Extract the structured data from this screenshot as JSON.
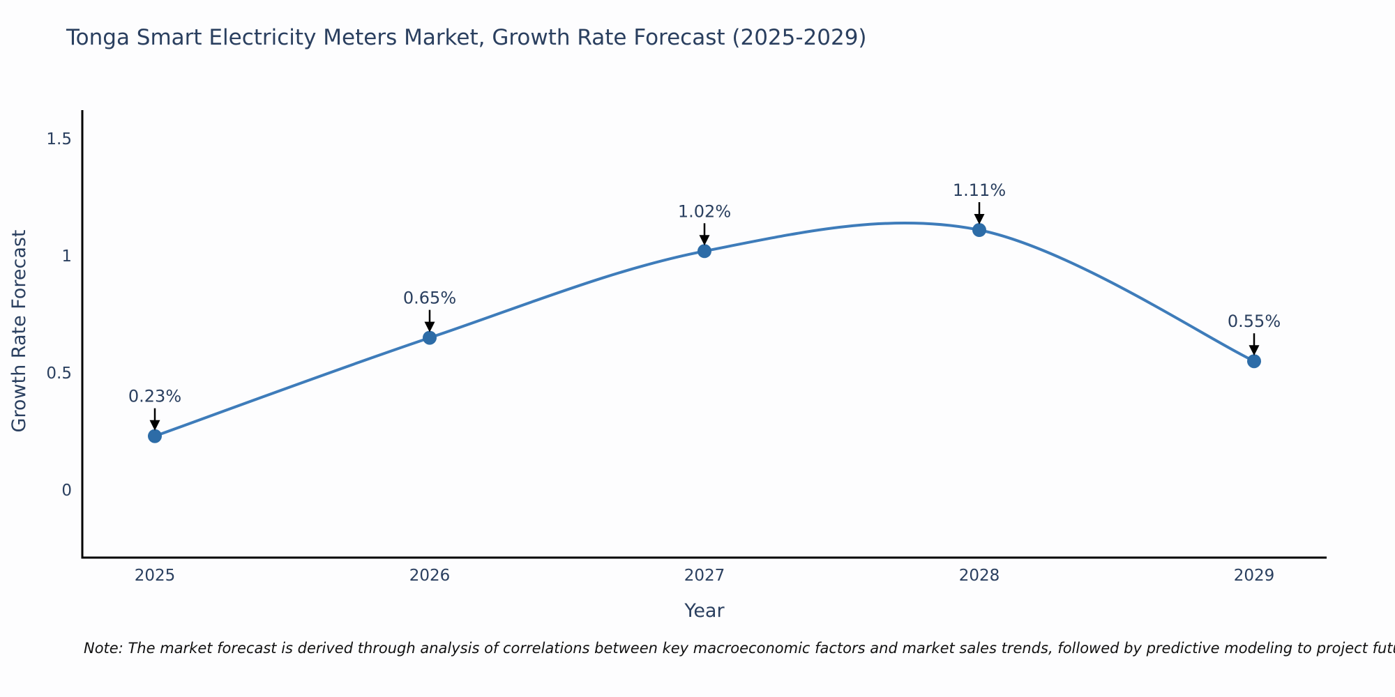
{
  "page": {
    "note": "Note: The market forecast is derived through analysis of correlations between key macroeconomic factors and market sales trends, followed by predictive modeling to project future sales"
  },
  "chart_data": {
    "type": "line",
    "line_shape": "spline",
    "title": "Tonga Smart Electricity Meters Market, Growth Rate Forecast (2025-2029)",
    "xlabel": "Year",
    "ylabel": "Growth Rate Forecast",
    "categories": [
      "2025",
      "2026",
      "2027",
      "2028",
      "2029"
    ],
    "series": [
      {
        "name": "Growth Rate Forecast",
        "values": [
          0.23,
          0.65,
          1.02,
          1.11,
          0.55
        ]
      }
    ],
    "point_labels": [
      "0.23%",
      "0.65%",
      "1.02%",
      "1.11%",
      "0.55%"
    ],
    "ytick_labels": [
      "0",
      "0.5",
      "1",
      "1.5"
    ],
    "ytick_values": [
      0,
      0.5,
      1,
      1.5
    ],
    "ylim": [
      -0.29,
      1.62
    ],
    "grid": false,
    "legend_position": "none",
    "annotations_have_arrows": true,
    "colors": {
      "line": "#3e7cba",
      "marker": "#2d6ca7",
      "axis_line": "#000000",
      "text": "#2a3f5f",
      "annotation_text": "#2a3f5f",
      "arrow": "#000000",
      "note_text": "#111111",
      "background": "#ffffff"
    }
  }
}
